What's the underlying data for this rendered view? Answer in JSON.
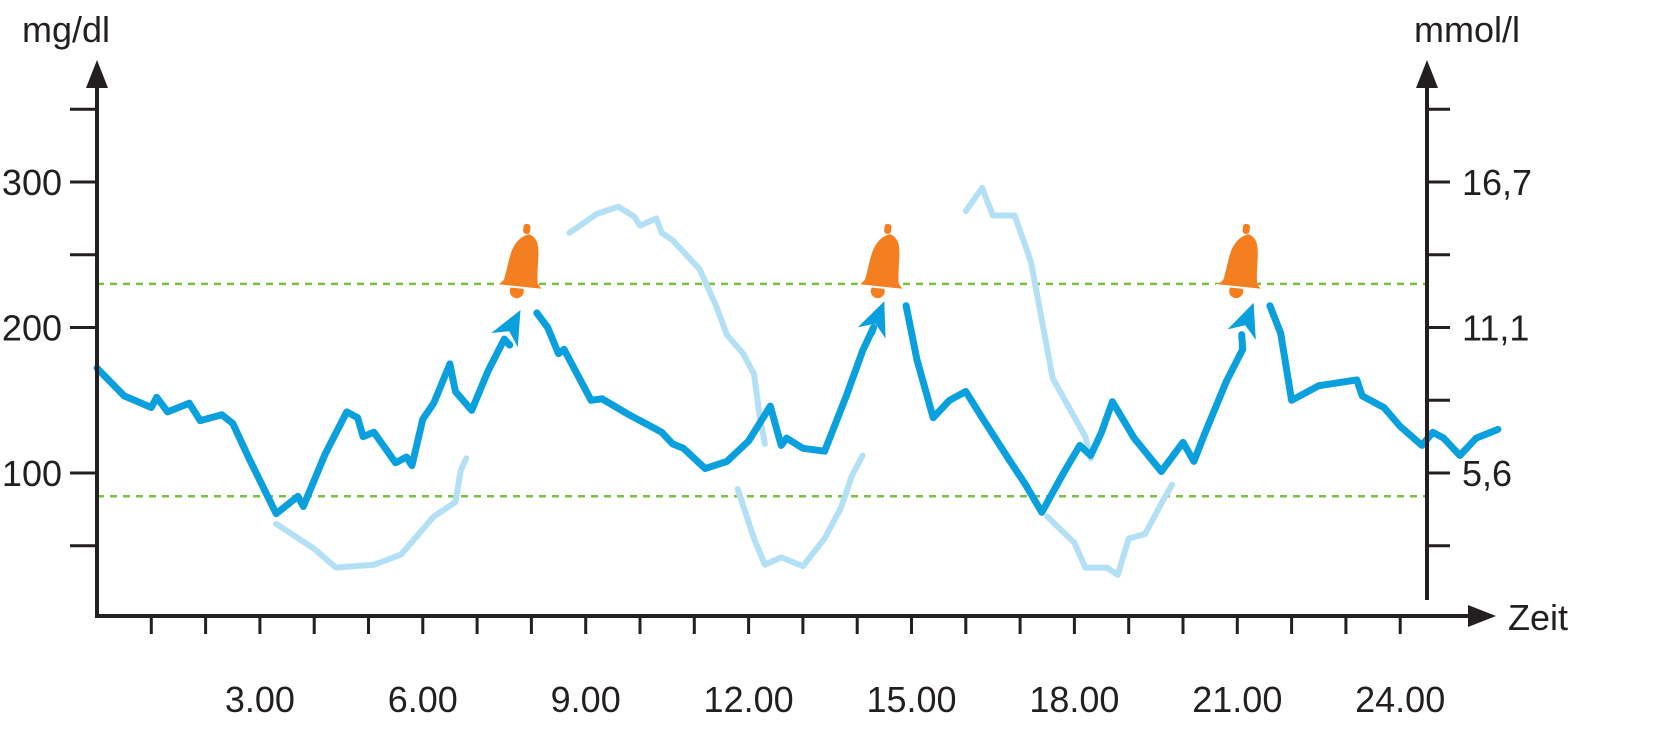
{
  "chart_data": {
    "type": "line",
    "left_axis_label": "mg/dl",
    "right_axis_label": "mmol/l",
    "x_axis_label": "Zeit",
    "x_tick_labels": [
      "3.00",
      "6.00",
      "9.00",
      "12.00",
      "15.00",
      "18.00",
      "21.00",
      "24.00"
    ],
    "x_ticks_hours": [
      1,
      2,
      3,
      4,
      5,
      6,
      7,
      8,
      9,
      10,
      11,
      12,
      13,
      14,
      15,
      16,
      17,
      18,
      19,
      20,
      21,
      22,
      23,
      24
    ],
    "left_tick_labels": [
      {
        "value": 300,
        "label": "300"
      },
      {
        "value": 200,
        "label": "200"
      },
      {
        "value": 100,
        "label": "100"
      }
    ],
    "left_minor_ticks": [
      50,
      250,
      350
    ],
    "right_tick_labels": [
      {
        "value": 300,
        "label": "16,7"
      },
      {
        "value": 200,
        "label": "11,1"
      },
      {
        "value": 100,
        "label": "5,6"
      }
    ],
    "right_minor_ticks": [
      50,
      150,
      250,
      350
    ],
    "xlim": [
      0,
      24.6
    ],
    "ylim": [
      0,
      370
    ],
    "thresholds": [
      230,
      84
    ],
    "colors": {
      "main": "#0aa0de",
      "ghost": "#b3e0f5",
      "threshold": "#7ac143",
      "alarm": "#f47f20",
      "axis": "#231f20"
    },
    "series": [
      {
        "role": "main",
        "segments": [
          [
            [
              0,
              172
            ],
            [
              0.5,
              153
            ],
            [
              1.0,
              145
            ],
            [
              1.1,
              152
            ],
            [
              1.3,
              142
            ],
            [
              1.7,
              148
            ],
            [
              1.9,
              136
            ],
            [
              2.3,
              140
            ],
            [
              2.5,
              134
            ],
            [
              2.8,
              110
            ],
            [
              3.3,
              72
            ],
            [
              3.7,
              84
            ],
            [
              3.8,
              77
            ],
            [
              4.2,
              113
            ],
            [
              4.6,
              142
            ],
            [
              4.8,
              138
            ],
            [
              4.9,
              125
            ],
            [
              5.1,
              128
            ],
            [
              5.5,
              107
            ],
            [
              5.7,
              111
            ],
            [
              5.8,
              105
            ],
            [
              6.0,
              137
            ],
            [
              6.2,
              148
            ],
            [
              6.5,
              175
            ],
            [
              6.6,
              156
            ],
            [
              6.9,
              143
            ],
            [
              7.2,
              170
            ],
            [
              7.5,
              192
            ],
            [
              7.6,
              188
            ]
          ],
          [
            [
              8.1,
              210
            ],
            [
              8.3,
              200
            ],
            [
              8.5,
              182
            ],
            [
              8.6,
              185
            ],
            [
              9.1,
              150
            ],
            [
              9.3,
              151
            ],
            [
              9.8,
              140
            ],
            [
              10.2,
              132
            ],
            [
              10.4,
              128
            ],
            [
              10.6,
              120
            ],
            [
              10.8,
              117
            ],
            [
              11.0,
              110
            ],
            [
              11.2,
              103
            ],
            [
              11.6,
              108
            ],
            [
              12.0,
              122
            ],
            [
              12.4,
              146
            ],
            [
              12.6,
              119
            ],
            [
              12.7,
              124
            ],
            [
              13.0,
              117
            ],
            [
              13.4,
              115
            ],
            [
              13.8,
              153
            ],
            [
              14.1,
              184
            ],
            [
              14.3,
              200
            ]
          ],
          [
            [
              14.9,
              215
            ],
            [
              15.1,
              178
            ],
            [
              15.4,
              138
            ],
            [
              15.7,
              150
            ],
            [
              16.0,
              156
            ],
            [
              16.3,
              138
            ],
            [
              16.8,
              109
            ],
            [
              17.1,
              92
            ],
            [
              17.4,
              73
            ],
            [
              17.8,
              100
            ],
            [
              18.1,
              119
            ],
            [
              18.3,
              112
            ],
            [
              18.5,
              128
            ],
            [
              18.7,
              149
            ],
            [
              19.1,
              124
            ],
            [
              19.6,
              101
            ],
            [
              20.0,
              121
            ],
            [
              20.2,
              108
            ],
            [
              20.4,
              127
            ],
            [
              20.8,
              163
            ],
            [
              21.1,
              185
            ]
          ],
          [
            [
              21.6,
              215
            ],
            [
              21.8,
              196
            ],
            [
              22.0,
              150
            ],
            [
              22.5,
              160
            ],
            [
              23.2,
              164
            ],
            [
              23.3,
              153
            ],
            [
              23.7,
              145
            ],
            [
              24.0,
              132
            ],
            [
              24.4,
              119
            ],
            [
              24.6,
              128
            ],
            [
              24.8,
              124
            ],
            [
              25.1,
              112
            ],
            [
              25.4,
              124
            ],
            [
              25.8,
              130
            ]
          ]
        ]
      },
      {
        "role": "ghost",
        "segments": [
          [
            [
              3.3,
              65
            ],
            [
              4.0,
              48
            ],
            [
              4.4,
              35
            ],
            [
              5.1,
              37
            ],
            [
              5.6,
              44
            ],
            [
              6.2,
              70
            ],
            [
              6.6,
              80
            ],
            [
              6.7,
              102
            ],
            [
              6.8,
              110
            ]
          ],
          [
            [
              8.7,
              265
            ],
            [
              9.2,
              278
            ],
            [
              9.6,
              283
            ],
            [
              9.9,
              276
            ],
            [
              10.0,
              270
            ],
            [
              10.3,
              275
            ],
            [
              10.4,
              265
            ],
            [
              10.6,
              260
            ],
            [
              11.1,
              240
            ],
            [
              11.4,
              215
            ],
            [
              11.6,
              195
            ],
            [
              11.9,
              182
            ],
            [
              12.1,
              168
            ],
            [
              12.2,
              140
            ],
            [
              12.3,
              120
            ]
          ],
          [
            [
              11.8,
              89
            ],
            [
              12.1,
              55
            ],
            [
              12.3,
              37
            ],
            [
              12.6,
              42
            ],
            [
              13.0,
              36
            ],
            [
              13.4,
              55
            ],
            [
              13.7,
              76
            ],
            [
              13.9,
              98
            ],
            [
              14.1,
              112
            ]
          ],
          [
            [
              16.0,
              280
            ],
            [
              16.3,
              296
            ],
            [
              16.5,
              277
            ],
            [
              16.9,
              277
            ],
            [
              17.2,
              245
            ],
            [
              17.6,
              165
            ],
            [
              17.9,
              145
            ],
            [
              18.2,
              125
            ],
            [
              18.3,
              110
            ]
          ],
          [
            [
              17.5,
              70
            ],
            [
              18.0,
              52
            ],
            [
              18.2,
              35
            ],
            [
              18.6,
              35
            ],
            [
              18.8,
              30
            ],
            [
              19.0,
              55
            ],
            [
              19.3,
              58
            ],
            [
              19.6,
              79
            ],
            [
              19.8,
              92
            ]
          ]
        ]
      }
    ],
    "arrows": [
      {
        "tip": [
          7.8,
          212
        ]
      },
      {
        "tip": [
          14.5,
          218
        ]
      },
      {
        "tip": [
          21.3,
          217
        ]
      }
    ],
    "alarms": [
      {
        "x": 7.85,
        "y": 248,
        "icon": "alarm-bell-icon"
      },
      {
        "x": 14.5,
        "y": 248,
        "icon": "alarm-bell-icon"
      },
      {
        "x": 21.1,
        "y": 248,
        "icon": "alarm-bell-icon"
      }
    ]
  }
}
